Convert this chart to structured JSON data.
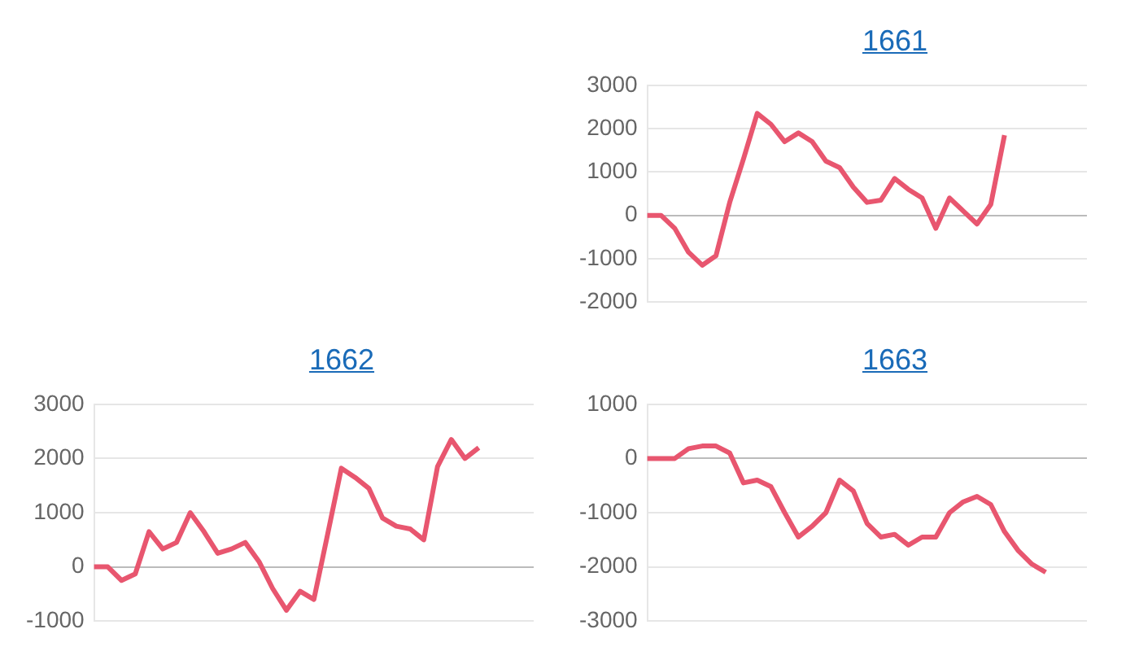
{
  "chart_data": [
    {
      "type": "line",
      "title": "1661",
      "categories": [
        null,
        null,
        null,
        null,
        null,
        null,
        null,
        null,
        null,
        null,
        null,
        null,
        null,
        null,
        null,
        null,
        null,
        null,
        null,
        null,
        null,
        null,
        null,
        null,
        null,
        null,
        null,
        null,
        null,
        null,
        null,
        null,
        null
      ],
      "series": [
        {
          "color": "#e8566f",
          "values": [
            0,
            0,
            -300,
            -850,
            -1150,
            -930,
            300,
            1300,
            2350,
            2100,
            1700,
            1900,
            1700,
            1250,
            1100,
            650,
            300,
            350,
            850,
            600,
            400,
            -300,
            400,
            100,
            -200,
            250,
            1850,
            null,
            null,
            null,
            null,
            null,
            null
          ]
        }
      ],
      "ylim": [
        -2000,
        3000
      ],
      "yticks": [
        -2000,
        -1000,
        0,
        1000,
        2000,
        3000
      ],
      "grid": "y",
      "legend": false,
      "marker": "none",
      "tick_labels": "y"
    },
    {
      "type": "line",
      "title": "1662",
      "categories": [
        null,
        null,
        null,
        null,
        null,
        null,
        null,
        null,
        null,
        null,
        null,
        null,
        null,
        null,
        null,
        null,
        null,
        null,
        null,
        null,
        null,
        null,
        null,
        null,
        null,
        null,
        null,
        null,
        null,
        null,
        null,
        null,
        null
      ],
      "series": [
        {
          "color": "#e8566f",
          "values": [
            0,
            0,
            -250,
            -130,
            650,
            330,
            450,
            1000,
            650,
            250,
            330,
            450,
            100,
            -400,
            -800,
            -450,
            -600,
            600,
            1820,
            1650,
            1450,
            900,
            750,
            700,
            500,
            1850,
            2350,
            2000,
            2200,
            null,
            null,
            null,
            null
          ]
        }
      ],
      "ylim": [
        -1000,
        3000
      ],
      "yticks": [
        -1000,
        0,
        1000,
        2000,
        3000
      ],
      "grid": "y",
      "legend": false,
      "marker": "none",
      "tick_labels": "y"
    },
    {
      "type": "line",
      "title": "1663",
      "categories": [
        null,
        null,
        null,
        null,
        null,
        null,
        null,
        null,
        null,
        null,
        null,
        null,
        null,
        null,
        null,
        null,
        null,
        null,
        null,
        null,
        null,
        null,
        null,
        null,
        null,
        null,
        null,
        null,
        null,
        null,
        null,
        null,
        null
      ],
      "series": [
        {
          "color": "#e8566f",
          "values": [
            0,
            0,
            0,
            180,
            230,
            230,
            100,
            -450,
            -400,
            -520,
            -1000,
            -1450,
            -1250,
            -1000,
            -400,
            -600,
            -1200,
            -1450,
            -1400,
            -1600,
            -1450,
            -1450,
            -1000,
            -800,
            -700,
            -850,
            -1350,
            -1700,
            -1950,
            -2100,
            null,
            null,
            null
          ]
        }
      ],
      "ylim": [
        -3000,
        1000
      ],
      "yticks": [
        -3000,
        -2000,
        -1000,
        0,
        1000
      ],
      "grid": "y",
      "legend": false,
      "marker": "none",
      "tick_labels": "y"
    }
  ]
}
